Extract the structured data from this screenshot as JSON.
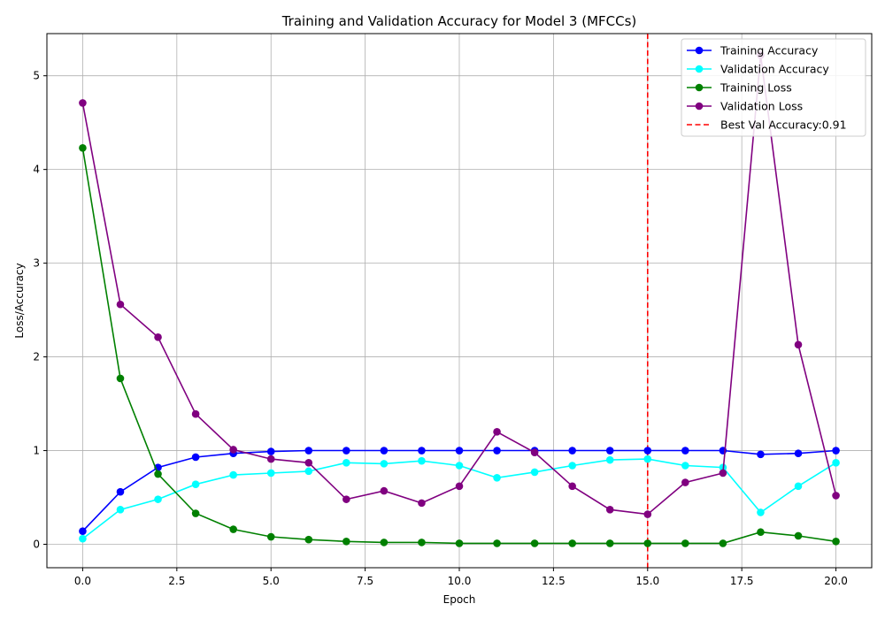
{
  "chart_data": {
    "type": "line",
    "title": "Training and Validation Accuracy for Model 3 (MFCCs)",
    "xlabel": "Epoch",
    "ylabel": "Loss/Accuracy",
    "xlim": [
      -0.95,
      20.95
    ],
    "ylim": [
      -0.25,
      5.45
    ],
    "x_ticks": [
      0,
      2.5,
      5,
      7.5,
      10,
      12.5,
      15,
      17.5,
      20
    ],
    "x_tick_labels": [
      "0.0",
      "2.5",
      "5.0",
      "7.5",
      "10.0",
      "12.5",
      "15.0",
      "17.5",
      "20.0"
    ],
    "y_ticks": [
      0,
      1,
      2,
      3,
      4,
      5
    ],
    "y_tick_labels": [
      "0",
      "1",
      "2",
      "3",
      "4",
      "5"
    ],
    "grid": true,
    "legend_position": "top-right",
    "x": [
      0,
      1,
      2,
      3,
      4,
      5,
      6,
      7,
      8,
      9,
      10,
      11,
      12,
      13,
      14,
      15,
      16,
      17,
      18,
      19,
      20
    ],
    "series": [
      {
        "name": "Training Accuracy",
        "color": "#0000ff",
        "values": [
          0.14,
          0.56,
          0.82,
          0.93,
          0.97,
          0.99,
          1.0,
          1.0,
          1.0,
          1.0,
          1.0,
          1.0,
          1.0,
          1.0,
          1.0,
          1.0,
          1.0,
          1.0,
          0.96,
          0.97,
          1.0
        ]
      },
      {
        "name": "Validation Accuracy",
        "color": "#00ffff",
        "values": [
          0.06,
          0.37,
          0.48,
          0.64,
          0.74,
          0.76,
          0.78,
          0.87,
          0.86,
          0.89,
          0.84,
          0.71,
          0.77,
          0.84,
          0.9,
          0.91,
          0.84,
          0.82,
          0.34,
          0.62,
          0.87
        ]
      },
      {
        "name": "Training Loss",
        "color": "#008000",
        "values": [
          4.23,
          1.77,
          0.75,
          0.33,
          0.16,
          0.08,
          0.05,
          0.03,
          0.02,
          0.02,
          0.01,
          0.01,
          0.01,
          0.01,
          0.01,
          0.01,
          0.01,
          0.01,
          0.13,
          0.09,
          0.03
        ]
      },
      {
        "name": "Validation Loss",
        "color": "#800080",
        "values": [
          4.71,
          2.56,
          2.21,
          1.39,
          1.01,
          0.91,
          0.87,
          0.48,
          0.57,
          0.44,
          0.62,
          1.2,
          0.98,
          0.62,
          0.37,
          0.32,
          0.66,
          0.76,
          5.22,
          2.13,
          0.52
        ]
      }
    ],
    "best_line": {
      "label": "Best Val Accuracy:0.91",
      "x": 15,
      "color": "#ff0000"
    }
  }
}
